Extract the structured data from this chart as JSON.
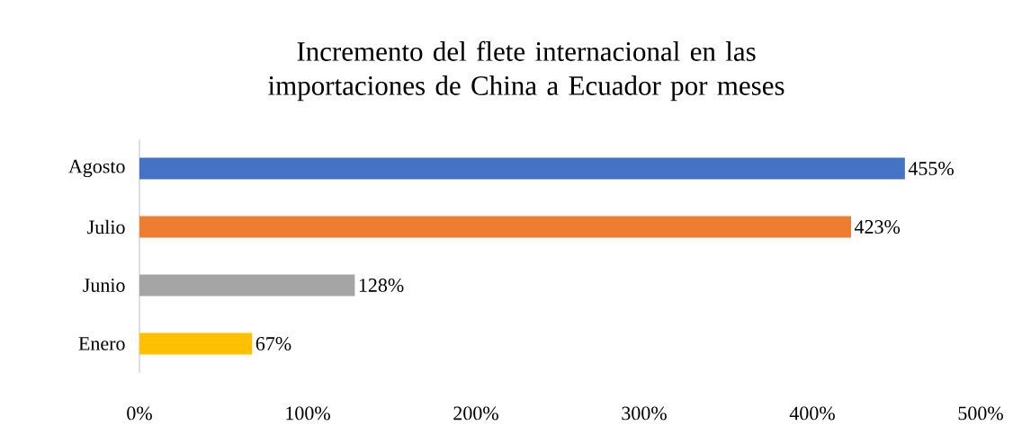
{
  "chart_data": {
    "type": "bar",
    "orientation": "horizontal",
    "title": "Incremento del flete internacional en las importaciones de China a Ecuador por meses",
    "categories": [
      "Agosto",
      "Julio",
      "Junio",
      "Enero"
    ],
    "values": [
      455,
      423,
      128,
      67
    ],
    "colors": [
      "#4472c4",
      "#ed7d31",
      "#a5a5a5",
      "#ffc000"
    ],
    "value_labels": [
      "455%",
      "423%",
      "128%",
      "67%"
    ],
    "xlim": [
      0,
      500
    ],
    "xticks": [
      {
        "value": 0,
        "label": "0%"
      },
      {
        "value": 100,
        "label": "100%"
      },
      {
        "value": 200,
        "label": "200%"
      },
      {
        "value": 300,
        "label": "300%"
      },
      {
        "value": 400,
        "label": "400%"
      },
      {
        "value": 500,
        "label": "500%"
      }
    ],
    "grid": false
  }
}
